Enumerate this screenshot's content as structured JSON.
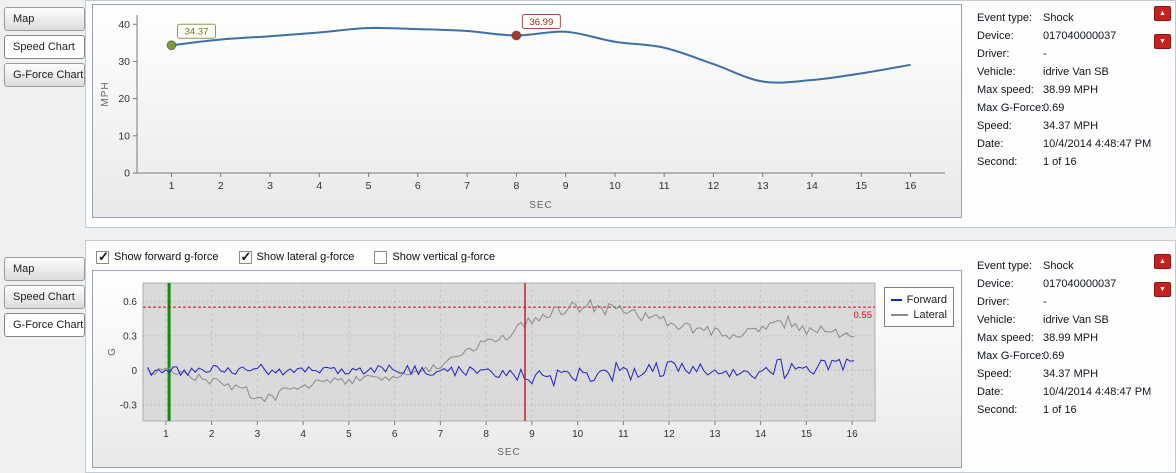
{
  "icons": {
    "up_arrow": "▲",
    "down_arrow": "▼"
  },
  "panels": {
    "top": {
      "tabs": [
        {
          "label": "Map",
          "active": false
        },
        {
          "label": "Speed Chart",
          "active": true
        },
        {
          "label": "G-Force Chart",
          "active": false
        }
      ]
    },
    "bottom": {
      "tabs": [
        {
          "label": "Map",
          "active": false
        },
        {
          "label": "Speed Chart",
          "active": false
        },
        {
          "label": "G-Force Chart",
          "active": true
        }
      ],
      "checkboxes": [
        {
          "label": "Show forward g-force",
          "checked": true
        },
        {
          "label": "Show lateral g-force",
          "checked": true
        },
        {
          "label": "Show vertical g-force",
          "checked": false
        }
      ]
    }
  },
  "details": {
    "rows": [
      {
        "label": "Event type:",
        "value": "Shock"
      },
      {
        "label": "Device:",
        "value": "017040000037"
      },
      {
        "label": "Driver:",
        "value": "-"
      },
      {
        "label": "Vehicle:",
        "value": "idrive Van SB"
      },
      {
        "label": "Max speed:",
        "value": "38.99 MPH"
      },
      {
        "label": "Max G-Force:",
        "value": "0.69"
      },
      {
        "label": "Speed:",
        "value": "34.37 MPH"
      },
      {
        "label": "Date:",
        "value": "10/4/2014 4:48:47 PM"
      },
      {
        "label": "Second:",
        "value": "1 of 16"
      }
    ]
  },
  "chart_data": [
    {
      "type": "line",
      "title": "Speed Chart",
      "xlabel": "SEC",
      "ylabel": "MPH",
      "x": [
        1,
        2,
        3,
        4,
        5,
        6,
        7,
        8,
        9,
        10,
        11,
        12,
        13,
        14,
        15,
        16
      ],
      "values": [
        34.37,
        35.9,
        36.8,
        37.8,
        38.99,
        38.7,
        38.2,
        36.99,
        38.0,
        35.3,
        33.7,
        29.3,
        24.6,
        25.0,
        26.8,
        29.1
      ],
      "yticks": [
        0,
        10,
        20,
        30,
        40
      ],
      "ylim": [
        0,
        42.5
      ],
      "xlim": [
        0.3,
        16.7
      ],
      "line_color": "#3d6fa8",
      "markers": [
        {
          "x": 1,
          "y": 34.37,
          "label": "34.37",
          "color": "#7d9b3c",
          "border": "#8a9a50",
          "text_color": "#5f7a24"
        },
        {
          "x": 8,
          "y": 36.99,
          "label": "36.99",
          "color": "#9e3a32",
          "border": "#a05048",
          "text_color": "#8b2a22"
        }
      ]
    },
    {
      "type": "line",
      "title": "G-Force Chart",
      "xlabel": "SEC",
      "ylabel": "G",
      "xticks": [
        1,
        2,
        3,
        4,
        5,
        6,
        7,
        8,
        9,
        10,
        11,
        12,
        13,
        14,
        15,
        16
      ],
      "yticks": [
        -0.3,
        0,
        0.3,
        0.6
      ],
      "xlim": [
        0.5,
        16.5
      ],
      "ylim": [
        -0.44,
        0.76
      ],
      "sample_step": 0.08,
      "threshold": {
        "value": 0.55,
        "label": "0.55",
        "color": "#cc1111"
      },
      "marker_lines": [
        {
          "x": 1.07,
          "color": "#0e8c0e",
          "width": 3
        },
        {
          "x": 8.85,
          "color": "#cc2020",
          "width": 1.5
        }
      ],
      "series": [
        {
          "name": "Forward",
          "color": "#2121c8",
          "envelope": [
            [
              1,
              0
            ],
            [
              2,
              0
            ],
            [
              3,
              0.01
            ],
            [
              4,
              -0.01
            ],
            [
              5,
              0
            ],
            [
              6,
              0.01
            ],
            [
              7,
              0
            ],
            [
              8,
              -0.01
            ],
            [
              8.8,
              -0.03
            ],
            [
              9.4,
              -0.06
            ],
            [
              10,
              -0.04
            ],
            [
              10.6,
              0
            ],
            [
              11.2,
              -0.03
            ],
            [
              12,
              0.02
            ],
            [
              12.8,
              0
            ],
            [
              13.5,
              -0.02
            ],
            [
              14,
              0
            ],
            [
              14.5,
              0.03
            ],
            [
              15,
              0.02
            ],
            [
              15.5,
              0.04
            ],
            [
              16,
              0.06
            ]
          ],
          "amplitude": [
            [
              1,
              0.05
            ],
            [
              3,
              0.045
            ],
            [
              5,
              0.04
            ],
            [
              7,
              0.045
            ],
            [
              8.5,
              0.05
            ],
            [
              9,
              0.08
            ],
            [
              10,
              0.07
            ],
            [
              11,
              0.09
            ],
            [
              12,
              0.07
            ],
            [
              13,
              0.05
            ],
            [
              13.6,
              0.04
            ],
            [
              14,
              0.09
            ],
            [
              14.6,
              0.1
            ],
            [
              15.2,
              0.06
            ],
            [
              16,
              0.05
            ]
          ]
        },
        {
          "name": "Lateral",
          "color": "#8a8a8a",
          "envelope": [
            [
              1,
              0
            ],
            [
              1.3,
              -0.02
            ],
            [
              2,
              -0.1
            ],
            [
              2.5,
              -0.15
            ],
            [
              3,
              -0.22
            ],
            [
              3.3,
              -0.24
            ],
            [
              3.6,
              -0.18
            ],
            [
              4,
              -0.13
            ],
            [
              4.5,
              -0.1
            ],
            [
              5,
              -0.09
            ],
            [
              5.5,
              -0.06
            ],
            [
              6,
              -0.06
            ],
            [
              6.5,
              -0.01
            ],
            [
              7,
              0.04
            ],
            [
              7.5,
              0.14
            ],
            [
              8,
              0.27
            ],
            [
              8.5,
              0.3
            ],
            [
              9,
              0.45
            ],
            [
              9.4,
              0.52
            ],
            [
              9.8,
              0.56
            ],
            [
              10.2,
              0.58
            ],
            [
              10.6,
              0.52
            ],
            [
              11,
              0.53
            ],
            [
              11.4,
              0.47
            ],
            [
              12,
              0.41
            ],
            [
              12.5,
              0.36
            ],
            [
              13,
              0.33
            ],
            [
              13.5,
              0.3
            ],
            [
              14,
              0.34
            ],
            [
              14.5,
              0.42
            ],
            [
              15,
              0.36
            ],
            [
              15.5,
              0.33
            ],
            [
              16,
              0.3
            ]
          ],
          "amplitude": [
            [
              1,
              0.035
            ],
            [
              2.5,
              0.04
            ],
            [
              3,
              0.05
            ],
            [
              4,
              0.035
            ],
            [
              6,
              0.03
            ],
            [
              7.5,
              0.035
            ],
            [
              8.5,
              0.04
            ],
            [
              9,
              0.05
            ],
            [
              9.5,
              0.07
            ],
            [
              10,
              0.08
            ],
            [
              10.7,
              0.06
            ],
            [
              11.5,
              0.05
            ],
            [
              12.5,
              0.045
            ],
            [
              13.5,
              0.04
            ],
            [
              14,
              0.06
            ],
            [
              14.8,
              0.07
            ],
            [
              15.5,
              0.05
            ],
            [
              16,
              0.04
            ]
          ]
        }
      ]
    }
  ]
}
